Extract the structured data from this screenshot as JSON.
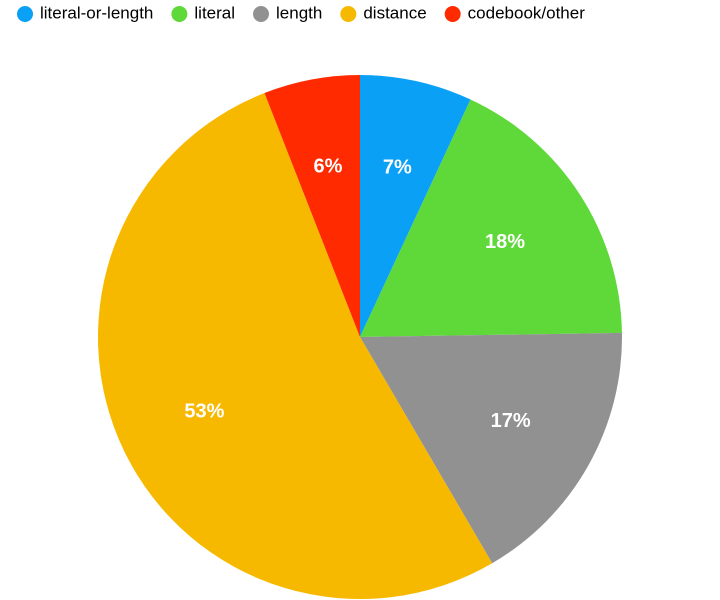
{
  "chart_data": {
    "type": "pie",
    "legend": "top",
    "categories": [
      "literal-or-length",
      "literal",
      "length",
      "distance",
      "codebook/other"
    ],
    "values": [
      7,
      18,
      17,
      53,
      6
    ],
    "value_labels": [
      "7%",
      "18%",
      "17%",
      "53%",
      "6%"
    ],
    "colors": [
      "#0aa0f5",
      "#5fd93a",
      "#919191",
      "#f7b900",
      "#ff2a00"
    ]
  }
}
